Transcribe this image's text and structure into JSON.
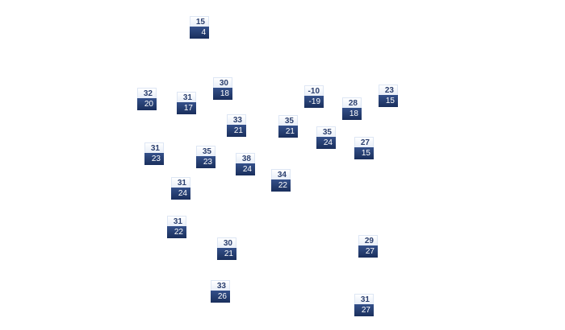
{
  "markers": [
    {
      "high": "15",
      "low": "4"
    },
    {
      "high": "32",
      "low": "20"
    },
    {
      "high": "31",
      "low": "17"
    },
    {
      "high": "30",
      "low": "18"
    },
    {
      "high": "33",
      "low": "21"
    },
    {
      "high": "35",
      "low": "21"
    },
    {
      "high": "-10",
      "low": "-19"
    },
    {
      "high": "28",
      "low": "18"
    },
    {
      "high": "23",
      "low": "15"
    },
    {
      "high": "35",
      "low": "24"
    },
    {
      "high": "27",
      "low": "15"
    },
    {
      "high": "31",
      "low": "23"
    },
    {
      "high": "35",
      "low": "23"
    },
    {
      "high": "38",
      "low": "24"
    },
    {
      "high": "34",
      "low": "22"
    },
    {
      "high": "31",
      "low": "24"
    },
    {
      "high": "31",
      "low": "22"
    },
    {
      "high": "30",
      "low": "21"
    },
    {
      "high": "29",
      "low": "27"
    },
    {
      "high": "33",
      "low": "26"
    },
    {
      "high": "31",
      "low": "27"
    }
  ],
  "colors": {
    "high_text": "#2b3f6e",
    "low_bg": "#1f3566",
    "low_text": "#ffffff"
  }
}
